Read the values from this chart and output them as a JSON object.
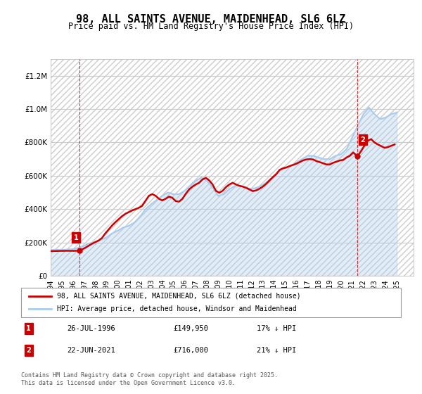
{
  "title": "98, ALL SAINTS AVENUE, MAIDENHEAD, SL6 6LZ",
  "subtitle": "Price paid vs. HM Land Registry's House Price Index (HPI)",
  "legend_line1": "98, ALL SAINTS AVENUE, MAIDENHEAD, SL6 6LZ (detached house)",
  "legend_line2": "HPI: Average price, detached house, Windsor and Maidenhead",
  "annotation1_label": "1",
  "annotation1_date": "26-JUL-1996",
  "annotation1_price": "£149,950",
  "annotation1_hpi": "17% ↓ HPI",
  "annotation2_label": "2",
  "annotation2_date": "22-JUN-2021",
  "annotation2_price": "£716,000",
  "annotation2_hpi": "21% ↓ HPI",
  "footnote": "Contains HM Land Registry data © Crown copyright and database right 2025.\nThis data is licensed under the Open Government Licence v3.0.",
  "price_paid_color": "#cc0000",
  "hpi_color": "#aaccee",
  "annotation_box_color": "#cc0000",
  "ylim": [
    0,
    1300000
  ],
  "yticks": [
    0,
    200000,
    400000,
    600000,
    800000,
    1000000,
    1200000
  ],
  "xlim_start": 1994.0,
  "xlim_end": 2026.5,
  "hpi_data": {
    "years": [
      1994.0,
      1994.5,
      1995.0,
      1995.5,
      1996.0,
      1996.5,
      1997.0,
      1997.5,
      1998.0,
      1998.5,
      1999.0,
      1999.5,
      2000.0,
      2000.5,
      2001.0,
      2001.5,
      2002.0,
      2002.5,
      2003.0,
      2003.5,
      2004.0,
      2004.5,
      2005.0,
      2005.5,
      2006.0,
      2006.5,
      2007.0,
      2007.5,
      2008.0,
      2008.5,
      2009.0,
      2009.5,
      2010.0,
      2010.5,
      2011.0,
      2011.5,
      2012.0,
      2012.5,
      2013.0,
      2013.5,
      2014.0,
      2014.5,
      2015.0,
      2015.5,
      2016.0,
      2016.5,
      2017.0,
      2017.5,
      2018.0,
      2018.5,
      2019.0,
      2019.5,
      2020.0,
      2020.5,
      2021.0,
      2021.5,
      2022.0,
      2022.5,
      2023.0,
      2023.5,
      2024.0,
      2024.5,
      2025.0
    ],
    "values": [
      155000,
      157000,
      155000,
      158000,
      160000,
      168000,
      180000,
      195000,
      205000,
      215000,
      230000,
      255000,
      270000,
      290000,
      300000,
      320000,
      355000,
      400000,
      430000,
      455000,
      480000,
      500000,
      490000,
      490000,
      510000,
      540000,
      570000,
      590000,
      570000,
      530000,
      480000,
      490000,
      520000,
      540000,
      540000,
      530000,
      520000,
      530000,
      545000,
      570000,
      600000,
      630000,
      645000,
      660000,
      680000,
      700000,
      720000,
      720000,
      710000,
      700000,
      700000,
      720000,
      730000,
      760000,
      830000,
      900000,
      970000,
      1010000,
      970000,
      940000,
      950000,
      970000,
      980000
    ]
  },
  "price_paid_data": {
    "years": [
      1996.56,
      2021.47
    ],
    "values": [
      149950,
      716000
    ]
  },
  "price_paid_line": {
    "years": [
      1994.0,
      1994.3,
      1994.6,
      1994.9,
      1995.2,
      1995.5,
      1995.8,
      1996.1,
      1996.4,
      1996.56,
      1996.8,
      1997.1,
      1997.4,
      1997.7,
      1998.0,
      1998.3,
      1998.6,
      1998.9,
      1999.2,
      1999.5,
      1999.8,
      2000.1,
      2000.4,
      2000.7,
      2001.0,
      2001.3,
      2001.6,
      2001.9,
      2002.2,
      2002.5,
      2002.8,
      2003.1,
      2003.4,
      2003.7,
      2004.0,
      2004.3,
      2004.6,
      2004.9,
      2005.2,
      2005.5,
      2005.8,
      2006.1,
      2006.4,
      2006.7,
      2007.0,
      2007.3,
      2007.6,
      2007.9,
      2008.2,
      2008.5,
      2008.8,
      2009.1,
      2009.4,
      2009.7,
      2010.0,
      2010.3,
      2010.6,
      2010.9,
      2011.2,
      2011.5,
      2011.8,
      2012.1,
      2012.4,
      2012.7,
      2013.0,
      2013.3,
      2013.6,
      2013.9,
      2014.2,
      2014.5,
      2014.8,
      2015.1,
      2015.4,
      2015.7,
      2016.0,
      2016.3,
      2016.6,
      2016.9,
      2017.2,
      2017.5,
      2017.8,
      2018.1,
      2018.4,
      2018.7,
      2019.0,
      2019.3,
      2019.6,
      2019.9,
      2020.2,
      2020.5,
      2020.8,
      2021.1,
      2021.47,
      2021.8,
      2022.1,
      2022.4,
      2022.7,
      2023.0,
      2023.3,
      2023.6,
      2023.9,
      2024.2,
      2024.5,
      2024.8
    ],
    "values": [
      148000,
      148500,
      149000,
      149500,
      149800,
      150000,
      149700,
      149900,
      149950,
      149950,
      158000,
      168000,
      180000,
      192000,
      202000,
      212000,
      227000,
      255000,
      278000,
      302000,
      322000,
      340000,
      358000,
      372000,
      382000,
      392000,
      400000,
      408000,
      420000,
      450000,
      480000,
      490000,
      480000,
      462000,
      452000,
      462000,
      475000,
      468000,
      448000,
      445000,
      462000,
      492000,
      518000,
      535000,
      548000,
      558000,
      578000,
      588000,
      572000,
      548000,
      510000,
      498000,
      510000,
      532000,
      548000,
      558000,
      548000,
      540000,
      535000,
      528000,
      518000,
      508000,
      512000,
      522000,
      535000,
      552000,
      572000,
      592000,
      610000,
      635000,
      645000,
      650000,
      658000,
      665000,
      672000,
      682000,
      692000,
      698000,
      700000,
      698000,
      688000,
      682000,
      675000,
      668000,
      668000,
      678000,
      685000,
      692000,
      695000,
      710000,
      720000,
      740000,
      716000,
      748000,
      780000,
      810000,
      820000,
      800000,
      788000,
      778000,
      768000,
      772000,
      780000,
      788000
    ]
  },
  "xtick_years": [
    1994,
    1995,
    1996,
    1997,
    1998,
    1999,
    2000,
    2001,
    2002,
    2003,
    2004,
    2005,
    2006,
    2007,
    2008,
    2009,
    2010,
    2011,
    2012,
    2013,
    2014,
    2015,
    2016,
    2017,
    2018,
    2019,
    2020,
    2021,
    2022,
    2023,
    2024,
    2025
  ],
  "grid_color": "#cccccc",
  "background_color": "#ffffff",
  "hatch_color": "#cccccc"
}
